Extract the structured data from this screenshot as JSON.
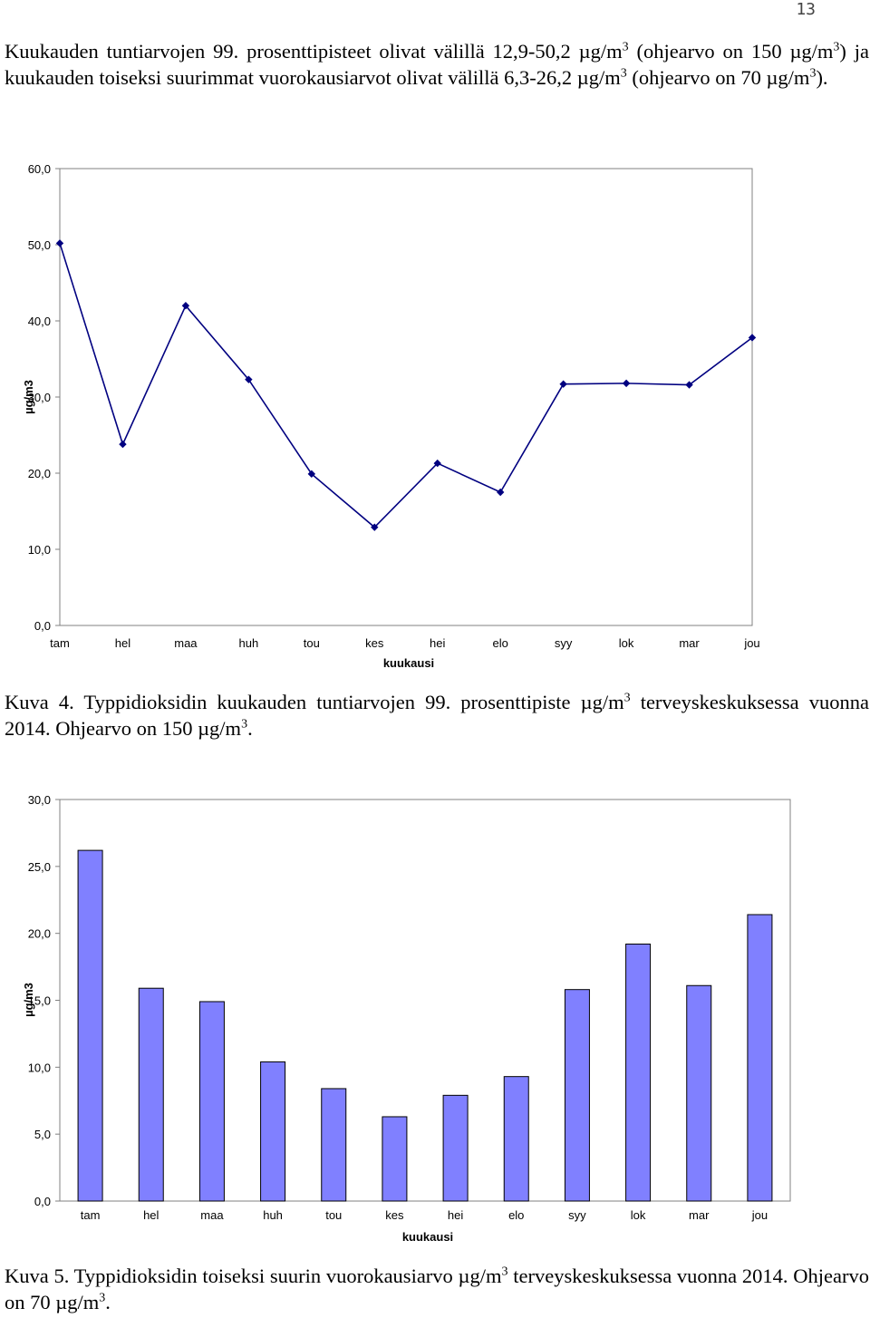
{
  "page_number": "13",
  "intro": {
    "part1": "Kuukauden tuntiarvojen 99. prosenttipisteet olivat välillä 12,9-50,2 µg/m",
    "sup1": "3",
    "part2": " (ohjearvo on 150 µg/m",
    "sup2": "3",
    "part3": ") ja kuukauden toiseksi suurimmat vuorokausiarvot olivat välillä 6,3-26,2 µg/m",
    "sup3": "3",
    "part4": " (ohjearvo on 70 µg/m",
    "sup4": "3",
    "part5": ")."
  },
  "caption4": {
    "part1": "Kuva 4. Typpidioksidin kuukauden tuntiarvojen 99. prosenttipiste µg/m",
    "sup1": "3",
    "part2": " terveyskeskuksessa vuonna 2014. Ohjearvo on 150 µg/m",
    "sup2": "3",
    "part3": "."
  },
  "caption5": {
    "part1": "Kuva 5. Typpidioksidin toiseksi suurin vuorokausiarvo µg/m",
    "sup1": "3",
    "part2": " terveyskeskuksessa vuonna 2014. Ohjearvo on 70 µg/m",
    "sup2": "3",
    "part3": "."
  },
  "chart_data": [
    {
      "type": "line",
      "categories": [
        "tam",
        "hel",
        "maa",
        "huh",
        "tou",
        "kes",
        "hei",
        "elo",
        "syy",
        "lok",
        "mar",
        "jou"
      ],
      "values": [
        50.2,
        23.8,
        42.0,
        32.3,
        19.9,
        12.9,
        21.3,
        17.5,
        31.7,
        31.8,
        31.6,
        37.8
      ],
      "yticks": [
        "0,0",
        "10,0",
        "20,0",
        "30,0",
        "40,0",
        "50,0",
        "60,0"
      ],
      "ylim": [
        0,
        60
      ],
      "xlabel": "kuukausi",
      "ylabel": "µg/m3",
      "color": "#000080",
      "grid": false
    },
    {
      "type": "bar",
      "categories": [
        "tam",
        "hel",
        "maa",
        "huh",
        "tou",
        "kes",
        "hei",
        "elo",
        "syy",
        "lok",
        "mar",
        "jou"
      ],
      "values": [
        26.2,
        15.9,
        14.9,
        10.4,
        8.4,
        6.3,
        7.9,
        9.3,
        15.8,
        19.2,
        16.1,
        21.4
      ],
      "yticks": [
        "0,0",
        "5,0",
        "10,0",
        "15,0",
        "20,0",
        "25,0",
        "30,0"
      ],
      "ylim": [
        0,
        30
      ],
      "xlabel": "kuukausi",
      "ylabel": "µg/m3",
      "color": "#8080ff",
      "grid": false
    }
  ]
}
